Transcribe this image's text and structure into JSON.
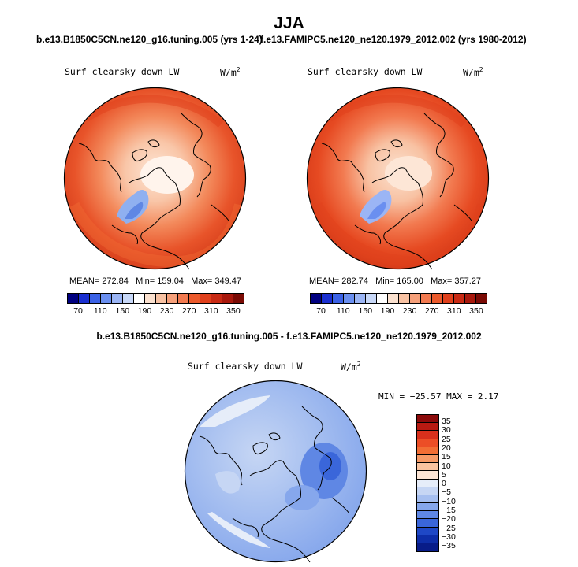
{
  "title": "JJA",
  "header": {
    "left_case": "b.e13.B1850C5CN.ne120_g16.tuning.005 (yrs 1-24)",
    "right_case": "f.e13.FAMIPC5.ne120_ne120.1979_2012.002 (yrs 1980-2012)",
    "diff_case": "b.e13.B1850C5CN.ne120_g16.tuning.005 - f.e13.FAMIPC5.ne120_ne120.1979_2012.002"
  },
  "panels": [
    {
      "variable": "Surf clearsky down LW",
      "units": "W/m",
      "units_sup": "2",
      "stats": {
        "mean": "MEAN= 272.84",
        "min": "Min= 159.04",
        "max": "Max= 349.47"
      }
    },
    {
      "variable": "Surf clearsky down LW",
      "units": "W/m",
      "units_sup": "2",
      "stats": {
        "mean": "MEAN= 282.74",
        "min": "Min= 165.00",
        "max": "Max= 357.27"
      }
    }
  ],
  "diff_panel": {
    "variable": "Surf clearsky down LW",
    "units": "W/m",
    "units_sup": "2",
    "minmax": "MIN = −25.57 MAX =   2.17"
  },
  "colorbar_abs": {
    "colors": [
      "#000080",
      "#1a2fd0",
      "#3b62e6",
      "#6a8ff0",
      "#9bb5f5",
      "#c8d8f8",
      "#ffffff",
      "#fbe1cf",
      "#f8c2a3",
      "#f6a07a",
      "#f27a50",
      "#ec5a2c",
      "#e0401c",
      "#c82a14",
      "#a8180c",
      "#7a0a04"
    ],
    "ticks": [
      "70",
      "110",
      "150",
      "190",
      "230",
      "270",
      "310",
      "350"
    ]
  },
  "colorbar_diff": {
    "colors": [
      "#8b0a0a",
      "#b81a12",
      "#d8301c",
      "#ec4e26",
      "#f26e34",
      "#f69a66",
      "#fac4a0",
      "#fde6d6",
      "#e6edf9",
      "#c6d6f4",
      "#a6bff0",
      "#86a7ec",
      "#5f87e4",
      "#3a66da",
      "#1f48c6",
      "#0e2ea8",
      "#081c88"
    ],
    "labels": [
      "35",
      "30",
      "25",
      "20",
      "15",
      "10",
      "5",
      "0",
      "−5",
      "−10",
      "−15",
      "−20",
      "−25",
      "−30",
      "−35"
    ]
  }
}
